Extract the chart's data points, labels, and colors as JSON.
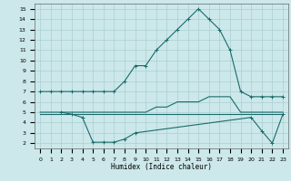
{
  "xlabel": "Humidex (Indice chaleur)",
  "bg_color": "#cce8ea",
  "grid_color": "#aacfd2",
  "line_color": "#1a6b6b",
  "xlim": [
    -0.5,
    23.5
  ],
  "ylim": [
    1.5,
    15.5
  ],
  "yticks": [
    2,
    3,
    4,
    5,
    6,
    7,
    8,
    9,
    10,
    11,
    12,
    13,
    14,
    15
  ],
  "xticks": [
    0,
    1,
    2,
    3,
    4,
    5,
    6,
    7,
    8,
    9,
    10,
    11,
    12,
    13,
    14,
    15,
    16,
    17,
    18,
    19,
    20,
    21,
    22,
    23
  ],
  "line1_x": [
    0,
    1,
    2,
    3,
    4,
    5,
    6,
    7,
    8,
    9,
    10,
    11,
    12,
    13,
    14,
    15,
    16,
    17,
    18,
    19,
    20,
    21,
    22,
    23
  ],
  "line1_y": [
    7,
    7,
    7,
    7,
    7,
    7,
    7,
    7,
    8,
    9.5,
    9.5,
    11,
    12,
    13,
    14,
    15,
    14,
    13,
    11,
    7,
    6.5,
    6.5,
    6.5,
    6.5
  ],
  "line2_x": [
    0,
    1,
    2,
    3,
    4,
    5,
    6,
    7,
    8,
    9,
    10,
    11,
    12,
    13,
    14,
    15,
    16,
    17,
    18,
    19,
    20,
    21,
    22,
    23
  ],
  "line2_y": [
    5,
    5,
    5,
    5,
    5,
    5,
    5,
    5,
    5,
    5,
    5,
    5.5,
    5.5,
    6,
    6,
    6,
    6.5,
    6.5,
    6.5,
    5,
    5,
    5,
    5,
    5
  ],
  "line3_x": [
    0,
    1,
    2,
    3,
    4,
    5,
    6,
    7,
    8,
    9,
    10,
    11,
    12,
    13,
    14,
    15,
    16,
    17,
    18,
    19,
    20,
    21,
    22,
    23
  ],
  "line3_y": [
    4.8,
    4.8,
    4.8,
    4.8,
    4.8,
    4.8,
    4.8,
    4.8,
    4.8,
    4.8,
    4.8,
    4.8,
    4.8,
    4.8,
    4.8,
    4.8,
    4.8,
    4.8,
    4.8,
    4.8,
    4.8,
    4.8,
    4.8,
    4.8
  ],
  "line4_x": [
    2,
    3,
    4,
    5,
    6,
    7,
    8,
    9,
    20,
    21,
    22,
    23
  ],
  "line4_y": [
    5,
    4.8,
    4.5,
    2.1,
    2.1,
    2.1,
    2.4,
    3,
    4.5,
    3.2,
    2,
    4.8
  ]
}
